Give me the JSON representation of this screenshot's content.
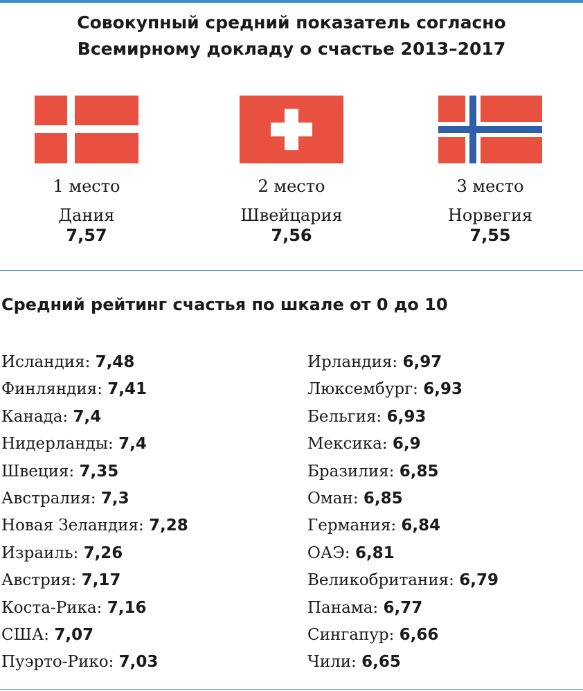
{
  "title_line1": "Совокупный средний показатель согласно",
  "title_line2": "Всемирному докладу о счастье 2013–2017",
  "colors": {
    "rule": "#3a8fc4",
    "flag_red": "#e8503f",
    "norway_blue": "#2f5fa8"
  },
  "podium": [
    {
      "place": "1 место",
      "country": "Дания",
      "score": "7,57",
      "flag": "denmark-flag"
    },
    {
      "place": "2 место",
      "country": "Швейцария",
      "score": "7,56",
      "flag": "switzerland-flag"
    },
    {
      "place": "3 место",
      "country": "Норвегия",
      "score": "7,55",
      "flag": "norway-flag"
    }
  ],
  "subtitle": "Средний рейтинг счастья по шкале от 0 до 10",
  "left_list": [
    {
      "name": "Исландия:",
      "value": "7,48"
    },
    {
      "name": "Финляндия:",
      "value": "7,41"
    },
    {
      "name": "Канада:",
      "value": "7,4"
    },
    {
      "name": "Нидерланды:",
      "value": "7,4"
    },
    {
      "name": "Швеция:",
      "value": "7,35"
    },
    {
      "name": "Австралия:",
      "value": "7,3"
    },
    {
      "name": "Новая Зеландия:",
      "value": "7,28"
    },
    {
      "name": "Израиль:",
      "value": "7,26"
    },
    {
      "name": "Австрия:",
      "value": "7,17"
    },
    {
      "name": "Коста-Рика:",
      "value": "7,16"
    },
    {
      "name": "США:",
      "value": "7,07"
    },
    {
      "name": "Пуэрто-Рико:",
      "value": "7,03"
    }
  ],
  "right_list": [
    {
      "name": "Ирландия:",
      "value": "6,97"
    },
    {
      "name": "Люксембург:",
      "value": "6,93"
    },
    {
      "name": "Бельгия:",
      "value": "6,93"
    },
    {
      "name": "Мексика:",
      "value": "6,9"
    },
    {
      "name": "Бразилия:",
      "value": "6,85"
    },
    {
      "name": "Оман:",
      "value": "6,85"
    },
    {
      "name": "Германия:",
      "value": "6,84"
    },
    {
      "name": "ОАЭ:",
      "value": "6,81"
    },
    {
      "name": "Великобритания:",
      "value": "6,79"
    },
    {
      "name": "Панама:",
      "value": "6,77"
    },
    {
      "name": "Сингапур:",
      "value": "6,66"
    },
    {
      "name": "Чили:",
      "value": "6,65"
    }
  ]
}
